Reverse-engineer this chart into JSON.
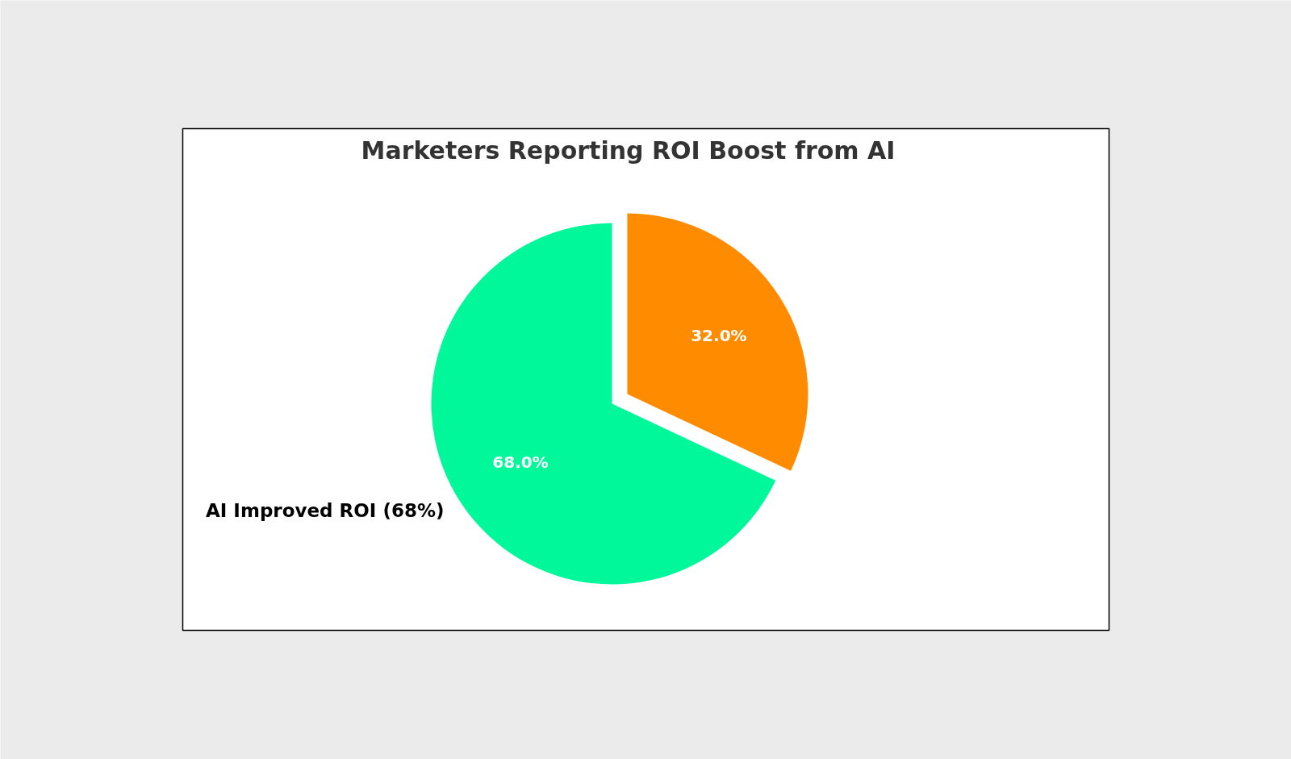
{
  "chart_data": {
    "type": "pie",
    "title": "Marketers Reporting ROI Boost from AI",
    "categories": [
      "AI Improved ROI (68%)",
      null
    ],
    "values": [
      68,
      32
    ],
    "colors": [
      "#00f89a",
      "#ff8c00"
    ],
    "value_labels": [
      "68.0%",
      "32.0%"
    ]
  }
}
